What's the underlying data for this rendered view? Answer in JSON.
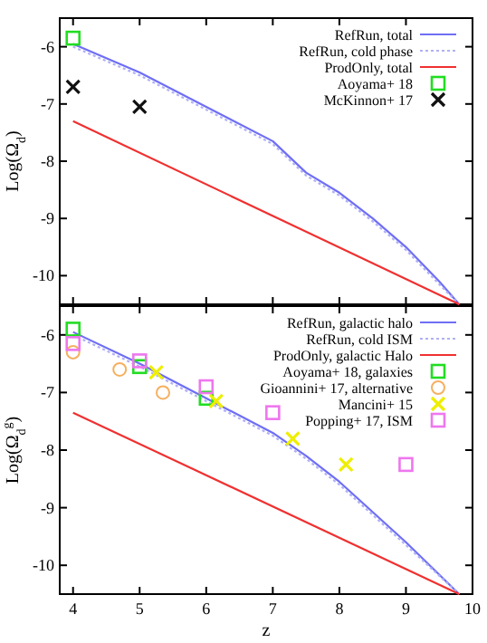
{
  "chart_data": [
    {
      "type": "line",
      "ylabel": "Log(Ω$_{d}$)",
      "xlim": [
        3.8,
        10
      ],
      "xticks": [
        4,
        5,
        6,
        7,
        8,
        9,
        10
      ],
      "ylim": [
        -10.5,
        -5.5
      ],
      "yticks": [
        -6,
        -7,
        -8,
        -9,
        -10
      ],
      "tick_labels": "y",
      "legend": "top right",
      "series": [
        {
          "name": "RefRun, total",
          "color": "#6e6ef5",
          "line_style": "solid",
          "x": [
            4,
            5,
            6,
            7,
            7.5,
            8,
            8.5,
            9,
            9.5,
            9.8
          ],
          "values": [
            -5.95,
            -6.45,
            -7.05,
            -7.65,
            -8.2,
            -8.55,
            -9.0,
            -9.5,
            -10.1,
            -10.5
          ]
        },
        {
          "name": "RefRun, cold phase",
          "color": "#b0b0f5",
          "line_style": "dotted",
          "x": [
            4,
            5,
            6,
            7,
            7.5,
            8,
            8.5,
            9,
            9.5,
            9.8
          ],
          "values": [
            -6.0,
            -6.5,
            -7.1,
            -7.7,
            -8.25,
            -8.6,
            -9.05,
            -9.55,
            -10.15,
            -10.5
          ]
        },
        {
          "name": "ProdOnly, total",
          "color": "#f03030",
          "line_style": "solid",
          "x": [
            4,
            9.8
          ],
          "values": [
            -7.3,
            -10.5
          ]
        },
        {
          "name": "Aoyama+ 18",
          "type": "scatter",
          "marker": "square",
          "color": "#22dd22",
          "x": [
            4
          ],
          "values": [
            -5.85
          ]
        },
        {
          "name": "McKinnon+ 17",
          "type": "scatter",
          "marker": "cross",
          "color": "#111111",
          "x": [
            4,
            5
          ],
          "values": [
            -6.7,
            -7.05
          ]
        }
      ]
    },
    {
      "type": "line",
      "ylabel": "Log(Ω$_{d}$$^{g}$)",
      "xlabel": "z",
      "xlim": [
        3.8,
        10
      ],
      "xticks": [
        4,
        5,
        6,
        7,
        8,
        9,
        10
      ],
      "ylim": [
        -10.5,
        -5.5
      ],
      "yticks": [
        -6,
        -7,
        -8,
        -9,
        -10
      ],
      "legend": "top right",
      "series": [
        {
          "name": "RefRun, galactic halo",
          "color": "#6e6ef5",
          "line_style": "solid",
          "x": [
            4,
            5,
            6,
            7,
            7.5,
            8,
            9,
            9.8
          ],
          "values": [
            -5.95,
            -6.5,
            -7.1,
            -7.7,
            -8.1,
            -8.55,
            -9.6,
            -10.5
          ]
        },
        {
          "name": "RefRun, cold ISM",
          "color": "#b0b0f5",
          "line_style": "dotted",
          "x": [
            4,
            5,
            6,
            7,
            7.5,
            8,
            9,
            9.8
          ],
          "values": [
            -6.0,
            -6.55,
            -7.15,
            -7.75,
            -8.15,
            -8.6,
            -9.65,
            -10.5
          ]
        },
        {
          "name": "ProdOnly, galactic Halo",
          "color": "#f03030",
          "line_style": "solid",
          "x": [
            4,
            9.8
          ],
          "values": [
            -7.35,
            -10.5
          ]
        },
        {
          "name": "Aoyama+ 18, galaxies",
          "type": "scatter",
          "marker": "square",
          "color": "#22dd22",
          "x": [
            4,
            5,
            6
          ],
          "values": [
            -5.9,
            -6.55,
            -7.1
          ]
        },
        {
          "name": "Gioannini+ 17, alternative",
          "type": "scatter",
          "marker": "circle",
          "color": "#f5b060",
          "x": [
            4,
            4.7,
            5.35
          ],
          "values": [
            -6.3,
            -6.6,
            -7.0
          ]
        },
        {
          "name": "Mancini+ 15",
          "type": "scatter",
          "marker": "cross",
          "color": "#eeee00",
          "x": [
            5.25,
            6.15,
            7.3,
            8.1
          ],
          "values": [
            -6.65,
            -7.15,
            -7.8,
            -8.25
          ]
        },
        {
          "name": "Popping+ 17, ISM",
          "type": "scatter",
          "marker": "square",
          "color": "#ee77ee",
          "x": [
            4,
            5,
            6,
            7,
            9
          ],
          "values": [
            -6.15,
            -6.45,
            -6.9,
            -7.35,
            -8.25
          ]
        }
      ]
    }
  ]
}
